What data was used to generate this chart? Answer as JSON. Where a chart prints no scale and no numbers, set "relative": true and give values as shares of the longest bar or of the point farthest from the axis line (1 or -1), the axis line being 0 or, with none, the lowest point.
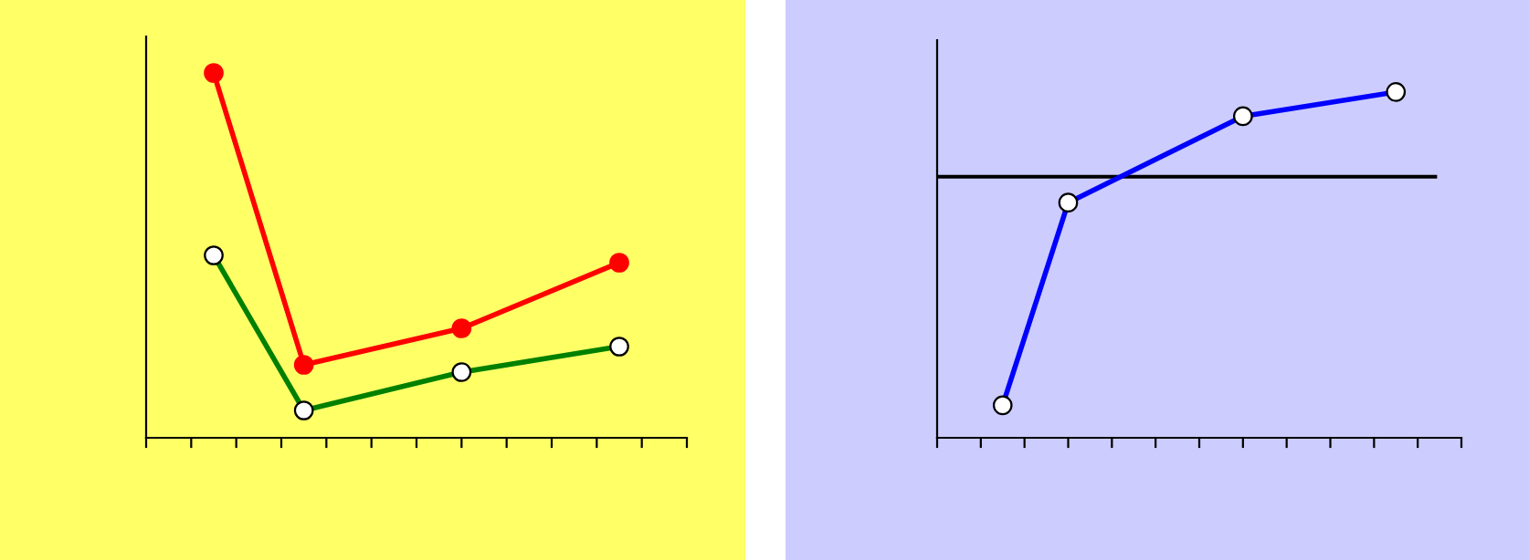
{
  "chart_data": [
    {
      "type": "line",
      "relative": true,
      "marker": "circle",
      "grid": false,
      "legend": false,
      "categories": [
        null,
        null,
        null,
        null,
        null,
        null,
        null,
        null,
        null,
        null,
        null,
        null,
        null,
        null,
        null,
        null,
        null,
        null,
        null,
        null,
        null,
        null,
        null,
        null,
        null
      ],
      "series": [
        {
          "color": "#ff0000",
          "values": [
            null,
            null,
            null,
            1,
            null,
            null,
            null,
            0.2,
            null,
            null,
            null,
            null,
            null,
            null,
            0.3,
            null,
            null,
            null,
            null,
            null,
            null,
            0.48,
            null,
            null,
            null
          ]
        },
        {
          "color": "#008000",
          "values": [
            null,
            null,
            null,
            0.5,
            null,
            null,
            null,
            0.075,
            null,
            null,
            null,
            null,
            null,
            null,
            0.18,
            null,
            null,
            null,
            null,
            null,
            null,
            0.25,
            null,
            null,
            null
          ]
        }
      ]
    },
    {
      "type": "line",
      "relative": true,
      "marker": "circle",
      "grid": false,
      "legend": false,
      "categories": [
        null,
        null,
        null,
        null,
        null,
        null,
        null,
        null,
        null,
        null,
        null,
        null,
        null,
        null,
        null,
        null,
        null,
        null,
        null,
        null,
        null,
        null,
        null,
        null,
        null
      ],
      "series": [
        {
          "color": "#0000ff",
          "values": [
            null,
            null,
            null,
            0.094,
            null,
            null,
            0.68,
            null,
            null,
            null,
            null,
            null,
            null,
            null,
            0.93,
            null,
            null,
            null,
            null,
            null,
            null,
            1,
            null,
            null,
            null
          ]
        }
      ],
      "ref_lines": [
        {
          "axis": "y",
          "value": 0.755,
          "color": "#000000"
        }
      ]
    }
  ]
}
